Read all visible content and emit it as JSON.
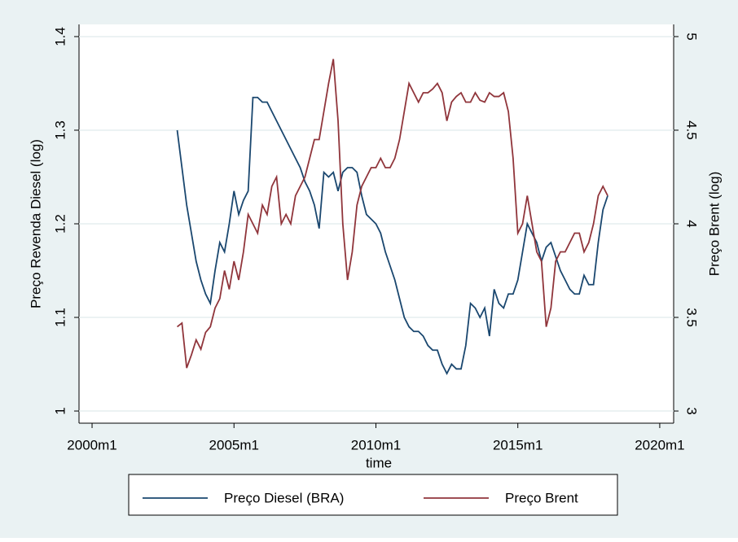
{
  "chart_data": {
    "type": "line",
    "xlabel": "time",
    "ylabel": "Preço Revenda Diesel (log)",
    "y2label": "Preço Brent (log)",
    "x": [
      "2003m1",
      "2003m3",
      "2003m5",
      "2003m7",
      "2003m9",
      "2003m11",
      "2004m1",
      "2004m3",
      "2004m5",
      "2004m7",
      "2004m9",
      "2004m11",
      "2005m1",
      "2005m3",
      "2005m5",
      "2005m7",
      "2005m9",
      "2005m11",
      "2006m1",
      "2006m3",
      "2006m5",
      "2006m7",
      "2006m9",
      "2006m11",
      "2007m1",
      "2007m3",
      "2007m5",
      "2007m7",
      "2007m9",
      "2007m11",
      "2008m1",
      "2008m3",
      "2008m5",
      "2008m7",
      "2008m9",
      "2008m11",
      "2009m1",
      "2009m3",
      "2009m5",
      "2009m7",
      "2009m9",
      "2009m11",
      "2010m1",
      "2010m3",
      "2010m5",
      "2010m7",
      "2010m9",
      "2010m11",
      "2011m1",
      "2011m3",
      "2011m5",
      "2011m7",
      "2011m9",
      "2011m11",
      "2012m1",
      "2012m3",
      "2012m5",
      "2012m7",
      "2012m9",
      "2012m11",
      "2013m1",
      "2013m3",
      "2013m5",
      "2013m7",
      "2013m9",
      "2013m11",
      "2014m1",
      "2014m3",
      "2014m5",
      "2014m7",
      "2014m9",
      "2014m11",
      "2015m1",
      "2015m3",
      "2015m5",
      "2015m7",
      "2015m9",
      "2015m11",
      "2016m1",
      "2016m3",
      "2016m5",
      "2016m7",
      "2016m9",
      "2016m11",
      "2017m1",
      "2017m3",
      "2017m5",
      "2017m7",
      "2017m9",
      "2017m11",
      "2018m1",
      "2018m3"
    ],
    "series": [
      {
        "name": "Preço Diesel (BRA)",
        "color": "#1a476f",
        "values": [
          1.3,
          1.26,
          1.22,
          1.19,
          1.16,
          1.14,
          1.125,
          1.115,
          1.15,
          1.18,
          1.17,
          1.2,
          1.235,
          1.21,
          1.225,
          1.235,
          1.335,
          1.335,
          1.33,
          1.33,
          1.32,
          1.31,
          1.3,
          1.29,
          1.28,
          1.27,
          1.26,
          1.245,
          1.235,
          1.22,
          1.195,
          1.255,
          1.25,
          1.255,
          1.235,
          1.255,
          1.26,
          1.26,
          1.255,
          1.23,
          1.21,
          1.205,
          1.2,
          1.19,
          1.17,
          1.155,
          1.14,
          1.12,
          1.1,
          1.09,
          1.085,
          1.085,
          1.08,
          1.07,
          1.065,
          1.065,
          1.05,
          1.04,
          1.05,
          1.045,
          1.045,
          1.07,
          1.115,
          1.11,
          1.1,
          1.11,
          1.08,
          1.13,
          1.115,
          1.11,
          1.125,
          1.125,
          1.14,
          1.17,
          1.2,
          1.19,
          1.18,
          1.16,
          1.175,
          1.18,
          1.165,
          1.15,
          1.14,
          1.13,
          1.125,
          1.125,
          1.145,
          1.135,
          1.135,
          1.18,
          1.215,
          1.23
        ]
      },
      {
        "name": "Preço Brent",
        "color": "#90353b",
        "axis": "y2",
        "values": [
          3.45,
          3.47,
          3.23,
          3.3,
          3.38,
          3.33,
          3.42,
          3.45,
          3.55,
          3.6,
          3.75,
          3.65,
          3.8,
          3.7,
          3.85,
          4.05,
          4.0,
          3.95,
          4.1,
          4.05,
          4.2,
          4.25,
          4.0,
          4.05,
          4.0,
          4.15,
          4.2,
          4.25,
          4.35,
          4.45,
          4.45,
          4.6,
          4.75,
          4.88,
          4.55,
          4.0,
          3.7,
          3.85,
          4.1,
          4.2,
          4.25,
          4.3,
          4.3,
          4.35,
          4.3,
          4.3,
          4.35,
          4.45,
          4.6,
          4.75,
          4.7,
          4.65,
          4.7,
          4.7,
          4.72,
          4.75,
          4.7,
          4.55,
          4.65,
          4.68,
          4.7,
          4.65,
          4.65,
          4.7,
          4.66,
          4.65,
          4.7,
          4.68,
          4.68,
          4.7,
          4.6,
          4.35,
          3.95,
          4.0,
          4.15,
          4.0,
          3.85,
          3.8,
          3.45,
          3.55,
          3.8,
          3.85,
          3.85,
          3.9,
          3.95,
          3.95,
          3.85,
          3.9,
          4.0,
          4.15,
          4.2,
          4.15
        ]
      }
    ],
    "xlim": [
      1999.54,
      2020.49
    ],
    "xticks": [
      {
        "value": 2000,
        "label": "2000m1"
      },
      {
        "value": 2005,
        "label": "2005m1"
      },
      {
        "value": 2010,
        "label": "2010m1"
      },
      {
        "value": 2015,
        "label": "2015m1"
      },
      {
        "value": 2020,
        "label": "2020m1"
      }
    ],
    "ylim": [
      0.987,
      1.413
    ],
    "yticks": [
      1,
      1.1,
      1.2,
      1.3,
      1.4
    ],
    "y2lim": [
      2.935,
      5.065
    ],
    "y2ticks": [
      3,
      3.5,
      4,
      4.5,
      5
    ],
    "grid": true,
    "legend": "bottom"
  }
}
